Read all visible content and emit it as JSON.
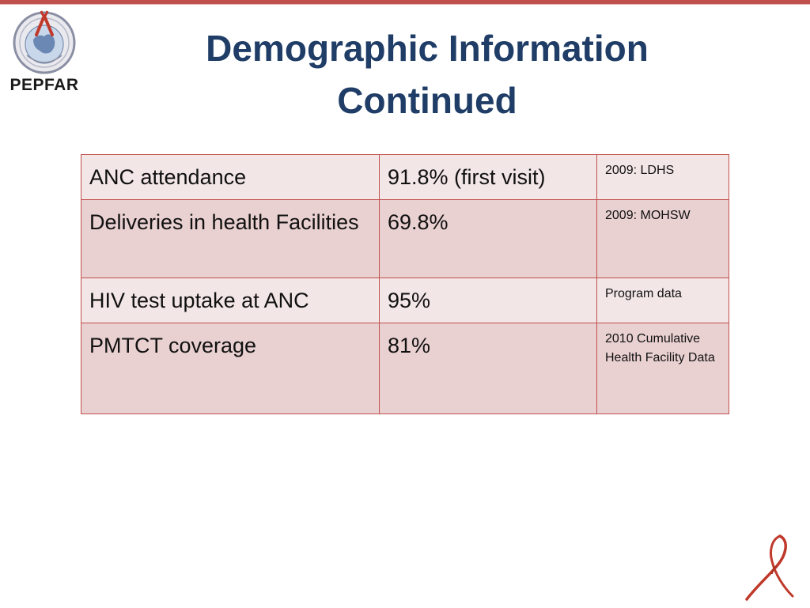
{
  "slide": {
    "title_line1": "Demographic Information",
    "title_line2": "Continued",
    "logo_text": "PEPFAR"
  },
  "colors": {
    "accent": "#c0504d",
    "title": "#1f3d66",
    "row_light": "#f3e6e6",
    "row_dark": "#e9d0d1"
  },
  "table": {
    "rows": [
      {
        "indicator": "ANC attendance",
        "value": "91.8% (first visit)",
        "source": "2009: LDHS"
      },
      {
        "indicator": "Deliveries in health Facilities",
        "value": "69.8%",
        "source": "2009: MOHSW"
      },
      {
        "indicator": "HIV test uptake at ANC",
        "value": "95%",
        "source": "Program data"
      },
      {
        "indicator": "PMTCT coverage",
        "value": "81%",
        "source": "2010 Cumulative Health Facility Data"
      }
    ]
  },
  "icons": {
    "logo": "pepfar-seal-logo",
    "corner": "red-ribbon-icon"
  }
}
